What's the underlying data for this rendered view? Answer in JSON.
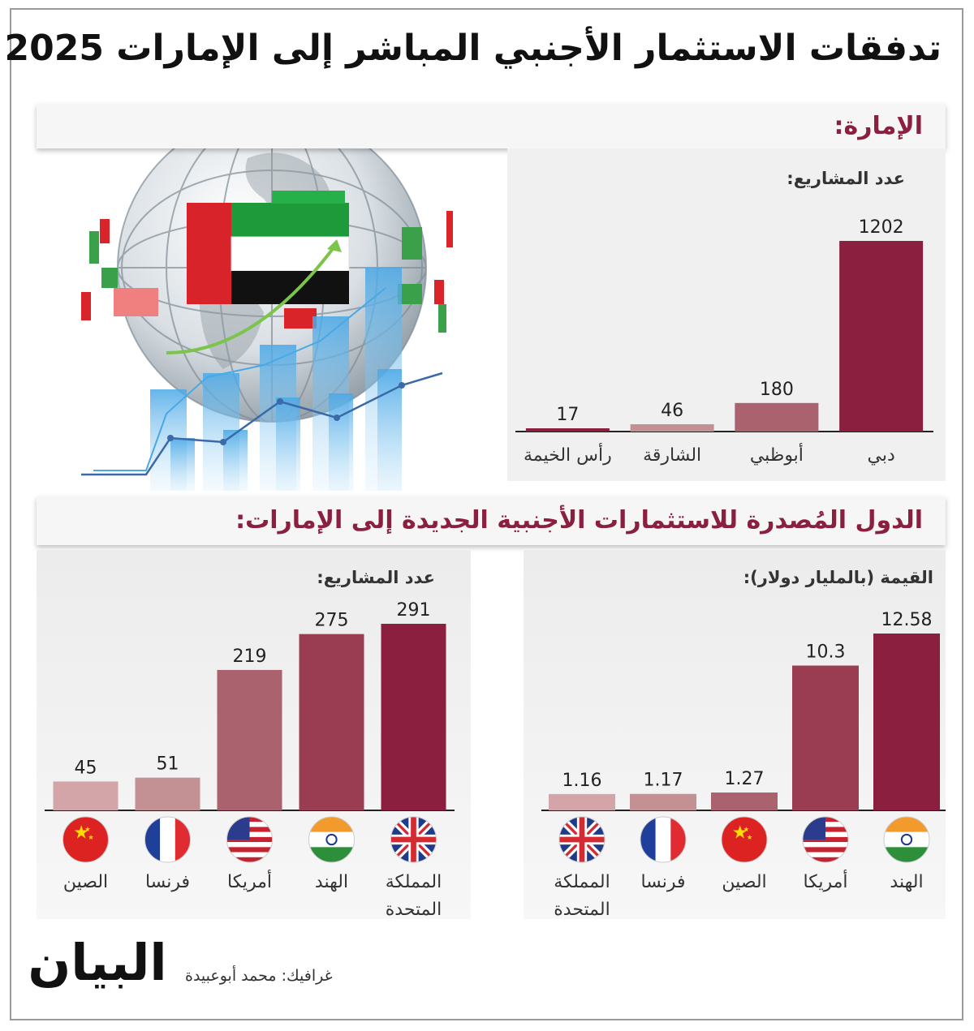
{
  "title": "تدفقات الاستثمار الأجنبي المباشر إلى الإمارات 2025",
  "section1": {
    "heading": "الإمارة:"
  },
  "section2": {
    "heading": "الدول المُصدرة للاستثمارات الأجنبية الجديدة إلى الإمارات:"
  },
  "credit": "غرافيك: محمد أبوعبيدة",
  "logo_text": "البيان",
  "colors": {
    "dark": "#8a1f3f",
    "mid": "#9a3d52",
    "light": "#a9626e",
    "lighter": "#c39094",
    "lightest": "#d4a5a8",
    "heading": "#8a1f3f"
  },
  "chart_data": [
    {
      "type": "bar",
      "title": "الإمارة:",
      "ylabel": "عدد المشاريع:",
      "categories": [
        "دبي",
        "أبوظبي",
        "الشارقة",
        "رأس الخيمة"
      ],
      "values": [
        1202,
        180,
        46,
        17
      ],
      "value_labels": [
        "1202",
        "180",
        "46",
        "17"
      ],
      "ylim": [
        0,
        1202
      ]
    },
    {
      "type": "bar",
      "ylabel": "عدد المشاريع:",
      "categories": [
        "المملكة المتحدة",
        "الهند",
        "أمريكا",
        "فرنسا",
        "الصين"
      ],
      "category_lines": [
        [
          "المملكة",
          "المتحدة"
        ],
        [
          "الهند"
        ],
        [
          "أمريكا"
        ],
        [
          "فرنسا"
        ],
        [
          "الصين"
        ]
      ],
      "flags": [
        "uk",
        "india",
        "usa",
        "france",
        "china"
      ],
      "values": [
        291,
        275,
        219,
        51,
        45
      ],
      "value_labels": [
        "291",
        "275",
        "219",
        "51",
        "45"
      ],
      "ylim": [
        0,
        291
      ]
    },
    {
      "type": "bar",
      "ylabel": "القيمة (بالمليار دولار):",
      "categories": [
        "الهند",
        "أمريكا",
        "الصين",
        "فرنسا",
        "المملكة المتحدة"
      ],
      "category_lines": [
        [
          "الهند"
        ],
        [
          "أمريكا"
        ],
        [
          "الصين"
        ],
        [
          "فرنسا"
        ],
        [
          "المملكة",
          "المتحدة"
        ]
      ],
      "flags": [
        "india",
        "usa",
        "china",
        "france",
        "uk"
      ],
      "values": [
        12.58,
        10.3,
        1.27,
        1.17,
        1.16
      ],
      "value_labels": [
        "12.58",
        "10.3",
        "1.27",
        "1.17",
        "1.16"
      ],
      "ylim": [
        0,
        12.58
      ]
    }
  ]
}
